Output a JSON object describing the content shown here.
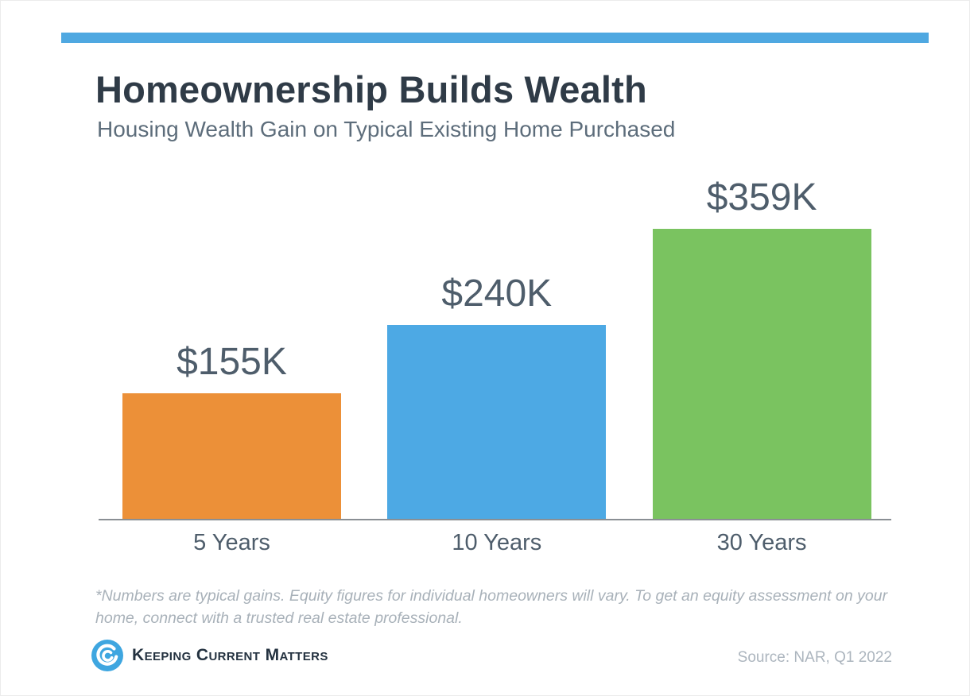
{
  "page": {
    "banner_color": "#4FA8E1",
    "title": "Homeownership Builds Wealth",
    "subtitle": "Housing Wealth Gain on Typical Existing Home Purchased",
    "footnote": "*Numbers are typical gains. Equity figures for individual homeowners will vary. To get an equity assessment on your home, connect with a trusted real estate professional.",
    "source": "Source: NAR, Q1 2022",
    "logo": {
      "brand": "Keeping Current Matters",
      "icon": "kcm-swirl-icon",
      "icon_color": "#3EA6E0"
    }
  },
  "chart_data": {
    "type": "bar",
    "title": "Homeownership Builds Wealth",
    "subtitle": "Housing Wealth Gain on Typical Existing Home Purchased",
    "categories": [
      "5 Years",
      "10 Years",
      "30 Years"
    ],
    "values": [
      155,
      240,
      359
    ],
    "value_labels": [
      "$155K",
      "$240K",
      "$359K"
    ],
    "units": "USD thousands (K)",
    "bar_colors": [
      "#EC9038",
      "#4DA9E4",
      "#7AC360"
    ],
    "label_color": "#4E5D6B",
    "axis_color": "#8A8F94",
    "ylim": [
      0,
      375
    ],
    "grid": false,
    "legend": false,
    "annotations": [
      "*Numbers are typical gains. Equity figures for individual homeowners will vary. To get an equity assessment on your home, connect with a trusted real estate professional.",
      "Source: NAR, Q1 2022"
    ]
  }
}
